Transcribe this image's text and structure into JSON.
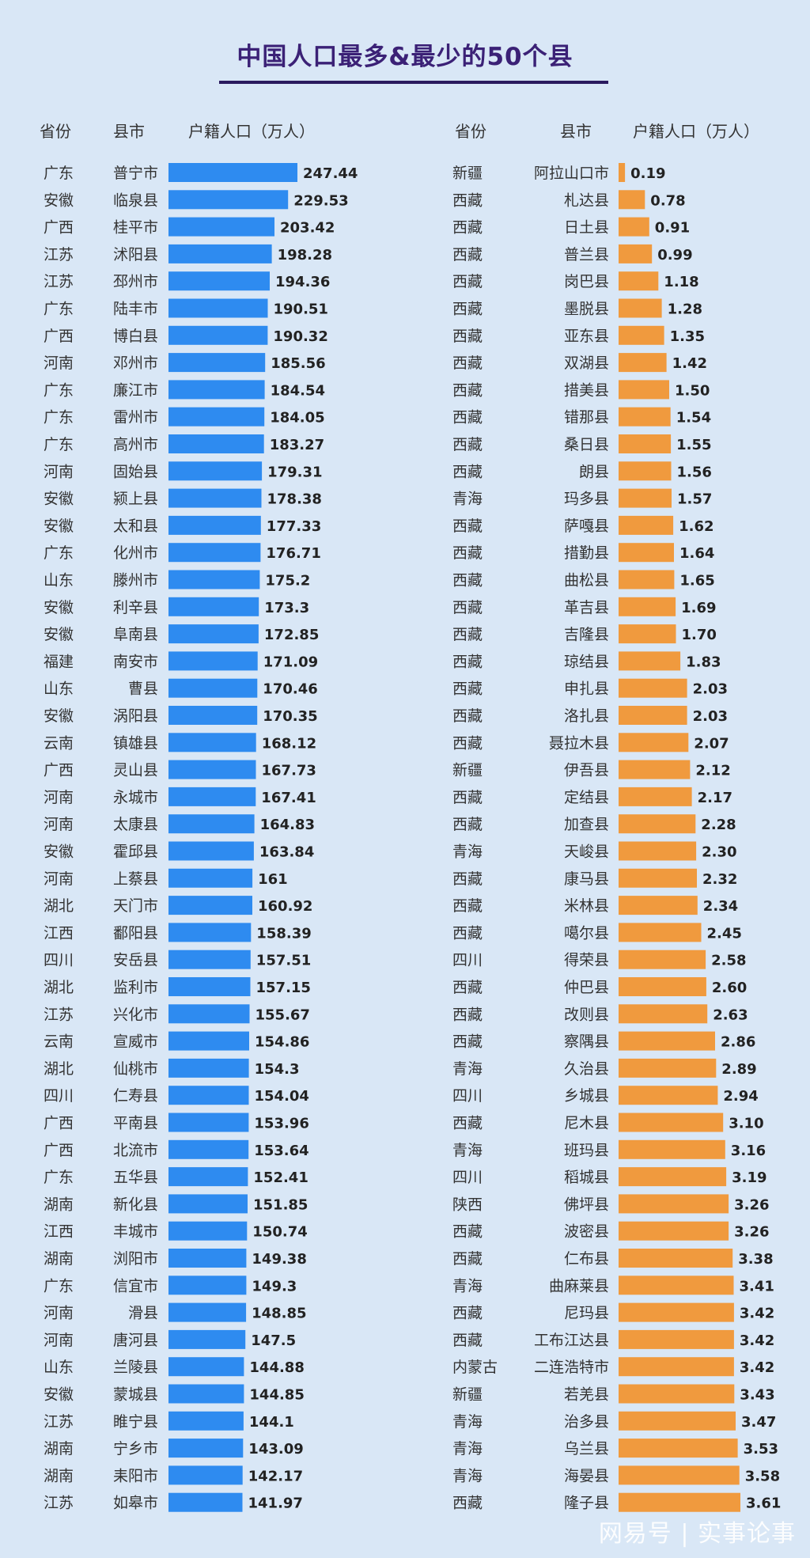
{
  "title": "中国人口最多&最少的50个县",
  "headers": {
    "province": "省份",
    "county": "县市",
    "population": "户籍人口（万人）"
  },
  "watermark": "网易号 | 实事论事",
  "colors": {
    "most": "#2e8bf0",
    "least": "#f09a3e",
    "background": "#d9e7f6",
    "title": "#3b2176"
  },
  "chart_data": [
    {
      "type": "bar",
      "orientation": "horizontal",
      "title": "中国人口最多&最少的50个县",
      "ylabel": "户籍人口（万人）",
      "provinces": [
        "广东",
        "安徽",
        "广西",
        "江苏",
        "江苏",
        "广东",
        "广西",
        "河南",
        "广东",
        "广东",
        "广东",
        "河南",
        "安徽",
        "安徽",
        "广东",
        "山东",
        "安徽",
        "安徽",
        "福建",
        "山东",
        "安徽",
        "云南",
        "广西",
        "河南",
        "河南",
        "安徽",
        "河南",
        "湖北",
        "江西",
        "四川",
        "湖北",
        "江苏",
        "云南",
        "湖北",
        "四川",
        "广西",
        "广西",
        "广东",
        "湖南",
        "江西",
        "湖南",
        "广东",
        "河南",
        "河南",
        "山东",
        "安徽",
        "江苏",
        "湖南",
        "湖南",
        "江苏"
      ],
      "categories": [
        "普宁市",
        "临泉县",
        "桂平市",
        "沭阳县",
        "邳州市",
        "陆丰市",
        "博白县",
        "邓州市",
        "廉江市",
        "雷州市",
        "高州市",
        "固始县",
        "颍上县",
        "太和县",
        "化州市",
        "滕州市",
        "利辛县",
        "阜南县",
        "南安市",
        "曹县",
        "涡阳县",
        "镇雄县",
        "灵山县",
        "永城市",
        "太康县",
        "霍邱县",
        "上蔡县",
        "天门市",
        "鄱阳县",
        "安岳县",
        "监利市",
        "兴化市",
        "宣威市",
        "仙桃市",
        "仁寿县",
        "平南县",
        "北流市",
        "五华县",
        "新化县",
        "丰城市",
        "浏阳市",
        "信宜市",
        "滑县",
        "唐河县",
        "兰陵县",
        "蒙城县",
        "睢宁县",
        "宁乡市",
        "耒阳市",
        "如皋市"
      ],
      "labels": [
        "247.44",
        "229.53",
        "203.42",
        "198.28",
        "194.36",
        "190.51",
        "190.32",
        "185.56",
        "184.54",
        "184.05",
        "183.27",
        "179.31",
        "178.38",
        "177.33",
        "176.71",
        "175.2",
        "173.3",
        "172.85",
        "171.09",
        "170.46",
        "170.35",
        "168.12",
        "167.73",
        "167.41",
        "164.83",
        "163.84",
        "161",
        "160.92",
        "158.39",
        "157.51",
        "157.15",
        "155.67",
        "154.86",
        "154.3",
        "154.04",
        "153.96",
        "153.64",
        "152.41",
        "151.85",
        "150.74",
        "149.38",
        "149.3",
        "148.85",
        "147.5",
        "144.88",
        "144.85",
        "144.1",
        "143.09",
        "142.17",
        "141.97"
      ],
      "values": [
        247.44,
        229.53,
        203.42,
        198.28,
        194.36,
        190.51,
        190.32,
        185.56,
        184.54,
        184.05,
        183.27,
        179.31,
        178.38,
        177.33,
        176.71,
        175.2,
        173.3,
        172.85,
        171.09,
        170.46,
        170.35,
        168.12,
        167.73,
        167.41,
        164.83,
        163.84,
        161,
        160.92,
        158.39,
        157.51,
        157.15,
        155.67,
        154.86,
        154.3,
        154.04,
        153.96,
        153.64,
        152.41,
        151.85,
        150.74,
        149.38,
        149.3,
        148.85,
        147.5,
        144.88,
        144.85,
        144.1,
        143.09,
        142.17,
        141.97
      ]
    },
    {
      "type": "bar",
      "orientation": "horizontal",
      "title": "中国人口最多&最少的50个县",
      "ylabel": "户籍人口（万人）",
      "provinces": [
        "新疆",
        "西藏",
        "西藏",
        "西藏",
        "西藏",
        "西藏",
        "西藏",
        "西藏",
        "西藏",
        "西藏",
        "西藏",
        "西藏",
        "青海",
        "西藏",
        "西藏",
        "西藏",
        "西藏",
        "西藏",
        "西藏",
        "西藏",
        "西藏",
        "西藏",
        "新疆",
        "西藏",
        "西藏",
        "青海",
        "西藏",
        "西藏",
        "西藏",
        "四川",
        "西藏",
        "西藏",
        "西藏",
        "青海",
        "四川",
        "西藏",
        "青海",
        "四川",
        "陕西",
        "西藏",
        "西藏",
        "青海",
        "西藏",
        "西藏",
        "内蒙古",
        "新疆",
        "青海",
        "青海",
        "青海",
        "西藏"
      ],
      "categories": [
        "阿拉山口市",
        "札达县",
        "日土县",
        "普兰县",
        "岗巴县",
        "墨脱县",
        "亚东县",
        "双湖县",
        "措美县",
        "错那县",
        "桑日县",
        "朗县",
        "玛多县",
        "萨嘎县",
        "措勤县",
        "曲松县",
        "革吉县",
        "吉隆县",
        "琼结县",
        "申扎县",
        "洛扎县",
        "聂拉木县",
        "伊吾县",
        "定结县",
        "加查县",
        "天峻县",
        "康马县",
        "米林县",
        "噶尔县",
        "得荣县",
        "仲巴县",
        "改则县",
        "察隅县",
        "久治县",
        "乡城县",
        "尼木县",
        "班玛县",
        "稻城县",
        "佛坪县",
        "波密县",
        "仁布县",
        "曲麻莱县",
        "尼玛县",
        "工布江达县",
        "二连浩特市",
        "若羌县",
        "治多县",
        "乌兰县",
        "海晏县",
        "隆子县"
      ],
      "labels": [
        "0.19",
        "0.78",
        "0.91",
        "0.99",
        "1.18",
        "1.28",
        "1.35",
        "1.42",
        "1.50",
        "1.54",
        "1.55",
        "1.56",
        "1.57",
        "1.62",
        "1.64",
        "1.65",
        "1.69",
        "1.70",
        "1.83",
        "2.03",
        "2.03",
        "2.07",
        "2.12",
        "2.17",
        "2.28",
        "2.30",
        "2.32",
        "2.34",
        "2.45",
        "2.58",
        "2.60",
        "2.63",
        "2.86",
        "2.89",
        "2.94",
        "3.10",
        "3.16",
        "3.19",
        "3.26",
        "3.26",
        "3.38",
        "3.41",
        "3.42",
        "3.42",
        "3.42",
        "3.43",
        "3.47",
        "3.53",
        "3.58",
        "3.61"
      ],
      "values": [
        0.19,
        0.78,
        0.91,
        0.99,
        1.18,
        1.28,
        1.35,
        1.42,
        1.5,
        1.54,
        1.55,
        1.56,
        1.57,
        1.62,
        1.64,
        1.65,
        1.69,
        1.7,
        1.83,
        2.03,
        2.03,
        2.07,
        2.12,
        2.17,
        2.28,
        2.3,
        2.32,
        2.34,
        2.45,
        2.58,
        2.6,
        2.63,
        2.86,
        2.89,
        2.94,
        3.1,
        3.16,
        3.19,
        3.26,
        3.26,
        3.38,
        3.41,
        3.42,
        3.42,
        3.42,
        3.43,
        3.47,
        3.53,
        3.58,
        3.61
      ]
    }
  ]
}
